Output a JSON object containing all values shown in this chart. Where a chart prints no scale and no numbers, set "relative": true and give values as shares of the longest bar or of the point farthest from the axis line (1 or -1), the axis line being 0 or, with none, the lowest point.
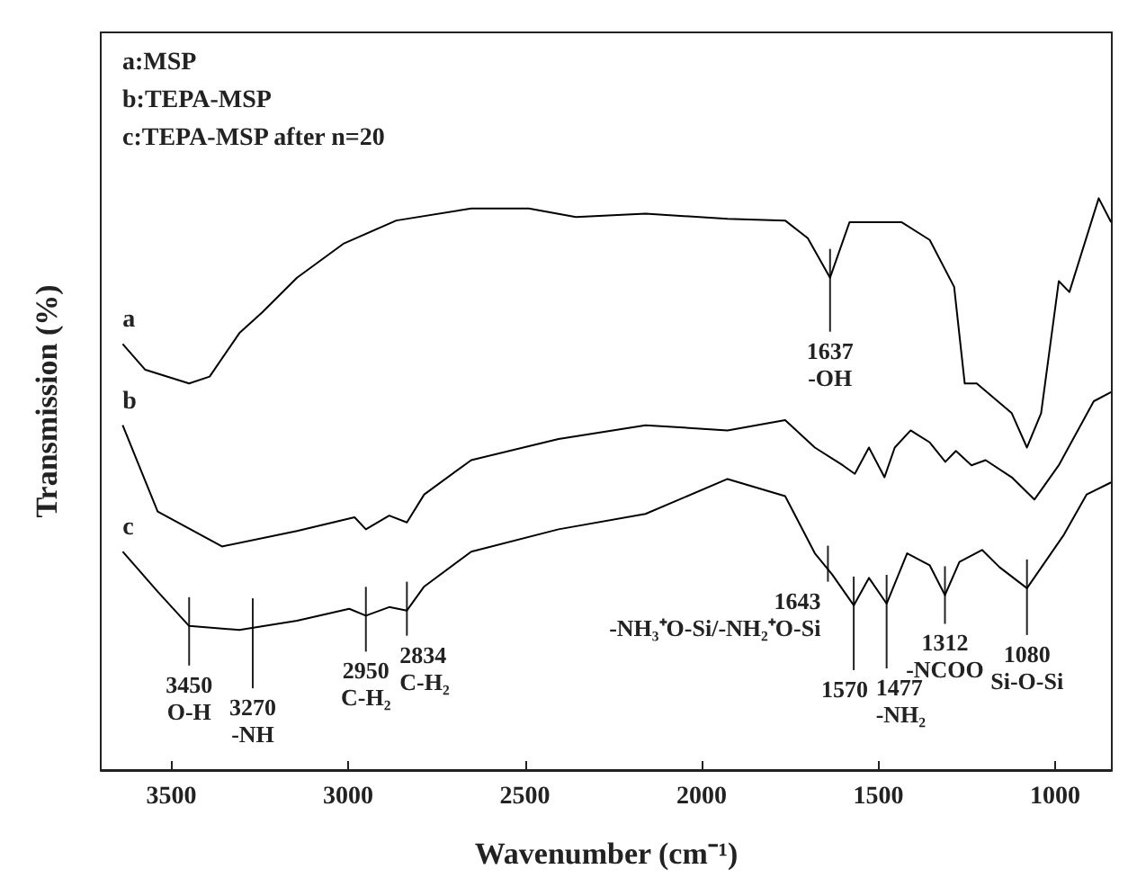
{
  "chart_data": {
    "type": "line",
    "relative": true,
    "xlabel": "Wavenumber (cm⁻¹)",
    "ylabel": "Transmission (%)",
    "xlim": [
      3700,
      840
    ],
    "xticks": [
      3500,
      3000,
      2500,
      2000,
      1500,
      1000
    ],
    "grid": false,
    "legend": false,
    "marker": "none",
    "line_style": "solid",
    "annotations": [
      "a:MSP",
      "b:TEPA-MSP",
      "c:TEPA-MSP after n=20",
      {
        "text": "1637\n-OH",
        "x": 1637,
        "y": 0.861
      },
      {
        "text": "3450\nO-H",
        "x": 3450,
        "y": 0.252
      },
      {
        "text": "3270\n-NH",
        "x": 3270,
        "y": 0.25
      },
      {
        "text": "2950\nC-H₂",
        "x": 2950,
        "y": 0.27
      },
      {
        "text": "2834\nC-H₂",
        "x": 2834,
        "y": 0.279
      },
      {
        "text": "1643\n-NH₃⁺O-Si/-NH₂⁺O-Si",
        "x": 1643,
        "y": 0.342
      },
      {
        "text": "1570",
        "x": 1570,
        "y": 0.288
      },
      {
        "text": "1477\n-NH₂",
        "x": 1477,
        "y": 0.291
      },
      {
        "text": "1312\n-NCOO",
        "x": 1312,
        "y": 0.306
      },
      {
        "text": "1080\nSi-O-Si",
        "x": 1080,
        "y": 0.318
      }
    ],
    "series": [
      {
        "name": "a",
        "color": "#000000",
        "x": [
          3638,
          3574,
          3450,
          3392,
          3308,
          3244,
          3145,
          3012,
          2864,
          2652,
          2489,
          2356,
          2159,
          1927,
          1764,
          1700,
          1637,
          1582,
          1434,
          1355,
          1286,
          1256,
          1222,
          1123,
          1080,
          1040,
          990,
          960,
          877,
          842
        ],
        "values": [
          0.745,
          0.7,
          0.676,
          0.688,
          0.764,
          0.8,
          0.861,
          0.921,
          0.961,
          0.982,
          0.982,
          0.967,
          0.973,
          0.964,
          0.961,
          0.93,
          0.861,
          0.958,
          0.958,
          0.927,
          0.845,
          0.676,
          0.676,
          0.624,
          0.564,
          0.624,
          0.855,
          0.836,
          1,
          0.958
        ]
      },
      {
        "name": "b",
        "color": "#000000",
        "x": [
          3638,
          3539,
          3357,
          3145,
          2982,
          2950,
          2884,
          2834,
          2785,
          2652,
          2405,
          2159,
          1927,
          1764,
          1680,
          1601,
          1567,
          1527,
          1483,
          1454,
          1409,
          1355,
          1311,
          1281,
          1237,
          1197,
          1123,
          1059,
          990,
          891,
          842
        ],
        "values": [
          0.603,
          0.452,
          0.391,
          0.418,
          0.442,
          0.421,
          0.445,
          0.433,
          0.482,
          0.542,
          0.579,
          0.603,
          0.594,
          0.612,
          0.564,
          0.533,
          0.518,
          0.564,
          0.512,
          0.564,
          0.594,
          0.573,
          0.539,
          0.558,
          0.533,
          0.542,
          0.512,
          0.473,
          0.533,
          0.645,
          0.661
        ]
      },
      {
        "name": "c",
        "color": "#000000",
        "x": [
          3638,
          3539,
          3450,
          3308,
          3145,
          2997,
          2950,
          2884,
          2834,
          2785,
          2652,
          2405,
          2159,
          1927,
          1764,
          1680,
          1631,
          1570,
          1527,
          1477,
          1419,
          1355,
          1312,
          1271,
          1207,
          1158,
          1080,
          975,
          911,
          842
        ],
        "values": [
          0.382,
          0.312,
          0.252,
          0.245,
          0.261,
          0.282,
          0.27,
          0.285,
          0.279,
          0.321,
          0.382,
          0.421,
          0.448,
          0.509,
          0.479,
          0.379,
          0.342,
          0.288,
          0.336,
          0.291,
          0.379,
          0.358,
          0.306,
          0.364,
          0.385,
          0.355,
          0.318,
          0.412,
          0.482,
          0.503
        ]
      }
    ]
  }
}
